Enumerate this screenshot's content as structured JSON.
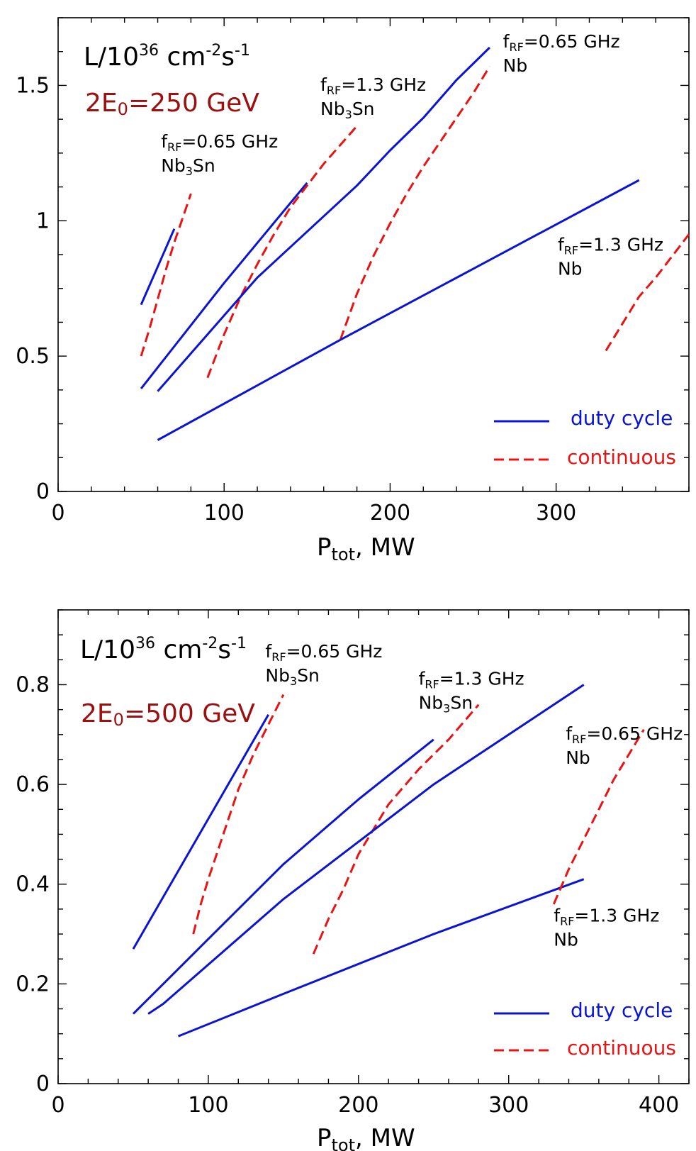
{
  "colors": {
    "duty_cycle": "#0a14d2",
    "continuous": "#e81414",
    "energy_label": "#9b1010"
  },
  "chart_data": [
    {
      "type": "line",
      "ylabel": "L/10³⁶ cm⁻²s⁻¹",
      "xlabel": "P_tot, MW",
      "energy_label": "2E₀=250 GeV",
      "xlim": [
        0,
        380
      ],
      "ylim": [
        0,
        1.75
      ],
      "x_ticks": [
        0,
        100,
        200,
        300
      ],
      "y_ticks": [
        0,
        0.5,
        1,
        1.5
      ],
      "x_tick_labels": [
        "0",
        "100",
        "200",
        "300"
      ],
      "y_tick_labels": [
        "0",
        "0.5",
        "1",
        "1.5"
      ],
      "legend": {
        "placement": "bottom-right",
        "entries": [
          "duty cycle",
          "continuous"
        ]
      },
      "series": [
        {
          "style": "duty",
          "points": [
            [
              50,
              0.69
            ],
            [
              70,
              0.97
            ]
          ]
        },
        {
          "style": "continuous",
          "points": [
            [
              50,
              0.5
            ],
            [
              55,
              0.6
            ],
            [
              60,
              0.71
            ],
            [
              65,
              0.82
            ],
            [
              70,
              0.92
            ],
            [
              75,
              1.01
            ],
            [
              80,
              1.1
            ]
          ]
        },
        {
          "style": "duty",
          "points": [
            [
              50,
              0.38
            ],
            [
              100,
              0.77
            ],
            [
              150,
              1.14
            ]
          ]
        },
        {
          "style": "continuous",
          "points": [
            [
              90,
              0.42
            ],
            [
              95,
              0.5
            ],
            [
              100,
              0.58
            ],
            [
              110,
              0.72
            ],
            [
              120,
              0.84
            ],
            [
              130,
              0.95
            ],
            [
              140,
              1.05
            ],
            [
              150,
              1.13
            ],
            [
              160,
              1.21
            ],
            [
              170,
              1.28
            ],
            [
              180,
              1.35
            ]
          ]
        },
        {
          "style": "duty",
          "points": [
            [
              60,
              0.37
            ],
            [
              120,
              0.79
            ],
            [
              180,
              1.13
            ],
            [
              200,
              1.26
            ],
            [
              220,
              1.38
            ],
            [
              240,
              1.52
            ],
            [
              260,
              1.64
            ]
          ]
        },
        {
          "style": "continuous",
          "points": [
            [
              170,
              0.56
            ],
            [
              180,
              0.73
            ],
            [
              190,
              0.87
            ],
            [
              200,
              0.99
            ],
            [
              210,
              1.1
            ],
            [
              220,
              1.2
            ],
            [
              230,
              1.29
            ],
            [
              240,
              1.38
            ],
            [
              250,
              1.47
            ],
            [
              260,
              1.57
            ]
          ]
        },
        {
          "style": "duty",
          "points": [
            [
              60,
              0.19
            ],
            [
              170,
              0.56
            ],
            [
              350,
              1.15
            ]
          ]
        },
        {
          "style": "continuous",
          "points": [
            [
              330,
              0.52
            ],
            [
              340,
              0.62
            ],
            [
              350,
              0.72
            ],
            [
              360,
              0.79
            ],
            [
              370,
              0.87
            ],
            [
              380,
              0.95
            ]
          ]
        }
      ],
      "annotations": [
        {
          "freq": "=0.65 GHz",
          "material": "Nb",
          "sub": "3",
          "material_tail": "Sn",
          "x": 62,
          "y": 1.27
        },
        {
          "freq": "=1.3 GHz",
          "material": "Nb",
          "sub": "3",
          "material_tail": "Sn",
          "x": 158,
          "y": 1.48
        },
        {
          "freq": "=0.65 GHz",
          "material": "Nb",
          "x": 268,
          "y": 1.64
        },
        {
          "freq": "=1.3 GHz",
          "material": "Nb",
          "x": 301,
          "y": 0.89
        }
      ]
    },
    {
      "type": "line",
      "ylabel": "L/10³⁶ cm⁻²s⁻¹",
      "xlabel": "P_tot, MW",
      "energy_label": "2E₀=500 GeV",
      "xlim": [
        0,
        420
      ],
      "ylim": [
        0,
        0.95
      ],
      "x_ticks": [
        0,
        100,
        200,
        300,
        400
      ],
      "y_ticks": [
        0,
        0.2,
        0.4,
        0.6,
        0.8
      ],
      "x_tick_labels": [
        "0",
        "100",
        "200",
        "300",
        "400"
      ],
      "y_tick_labels": [
        "0",
        "0.2",
        "0.4",
        "0.6",
        "0.8"
      ],
      "legend": {
        "placement": "bottom-right",
        "entries": [
          "duty cycle",
          "continuous"
        ]
      },
      "series": [
        {
          "style": "duty",
          "points": [
            [
              50,
              0.27
            ],
            [
              140,
              0.74
            ]
          ]
        },
        {
          "style": "continuous",
          "points": [
            [
              90,
              0.3
            ],
            [
              95,
              0.36
            ],
            [
              100,
              0.41
            ],
            [
              110,
              0.5
            ],
            [
              120,
              0.59
            ],
            [
              130,
              0.66
            ],
            [
              140,
              0.72
            ],
            [
              150,
              0.78
            ]
          ]
        },
        {
          "style": "duty",
          "points": [
            [
              50,
              0.14
            ],
            [
              100,
              0.29
            ],
            [
              150,
              0.44
            ],
            [
              200,
              0.57
            ],
            [
              250,
              0.69
            ]
          ]
        },
        {
          "style": "continuous",
          "points": [
            [
              170,
              0.26
            ],
            [
              180,
              0.33
            ],
            [
              190,
              0.39
            ],
            [
              200,
              0.46
            ],
            [
              220,
              0.56
            ],
            [
              240,
              0.63
            ],
            [
              260,
              0.69
            ],
            [
              280,
              0.76
            ]
          ]
        },
        {
          "style": "duty",
          "points": [
            [
              60,
              0.14
            ],
            [
              70,
              0.16
            ],
            [
              150,
              0.37
            ],
            [
              250,
              0.6
            ],
            [
              350,
              0.8
            ]
          ]
        },
        {
          "style": "duty",
          "points": [
            [
              80,
              0.095
            ],
            [
              150,
              0.18
            ],
            [
              250,
              0.3
            ],
            [
              350,
              0.41
            ]
          ]
        },
        {
          "style": "continuous",
          "points": [
            [
              330,
              0.36
            ],
            [
              340,
              0.43
            ],
            [
              350,
              0.49
            ],
            [
              360,
              0.55
            ],
            [
              370,
              0.61
            ],
            [
              380,
              0.66
            ],
            [
              390,
              0.71
            ]
          ]
        }
      ],
      "annotations": [
        {
          "freq": "=0.65 GHz",
          "material": "Nb",
          "sub": "3",
          "material_tail": "Sn",
          "x": 138,
          "y": 0.855
        },
        {
          "freq": "=1.3 GHz",
          "material": "Nb",
          "sub": "3",
          "material_tail": "Sn",
          "x": 240,
          "y": 0.8
        },
        {
          "freq": "=0.65 GHz",
          "material": "Nb",
          "x": 338,
          "y": 0.69
        },
        {
          "freq": "=1.3 GHz",
          "material": "Nb",
          "x": 330,
          "y": 0.325
        }
      ]
    }
  ],
  "labels": {
    "ylabel_L": "L/10",
    "ylabel_exp": "36",
    "ylabel_cm": " cm",
    "ylabel_cm_exp": "-2",
    "ylabel_s": "s",
    "ylabel_s_exp": "-1",
    "xlabel_P": "P",
    "xlabel_sub": "tot",
    "xlabel_tail": ", MW",
    "freq_f": "f",
    "freq_sub": "RF",
    "energy_pre": "2E",
    "energy_sub": "0",
    "energy_250": "=250 GeV",
    "energy_500": "=500 GeV",
    "legend_duty": "duty cycle",
    "legend_cont": "continuous"
  }
}
